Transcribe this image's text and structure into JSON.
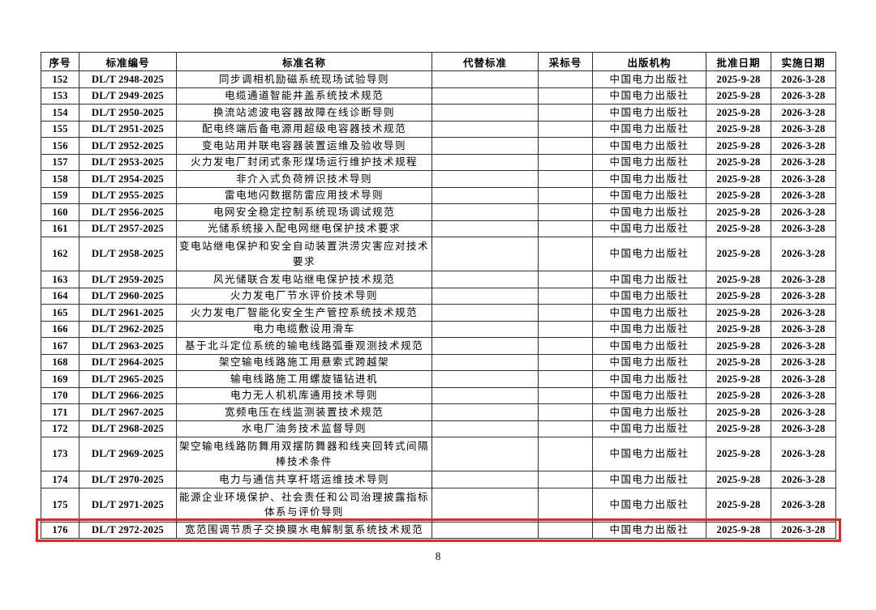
{
  "page": {
    "number": "8"
  },
  "table": {
    "border_color": "#2e2e2e",
    "highlight_color": "#ee2224",
    "columns": [
      {
        "key": "index",
        "label": "序号"
      },
      {
        "key": "code",
        "label": "标准编号"
      },
      {
        "key": "name",
        "label": "标准名称"
      },
      {
        "key": "replaces",
        "label": "代替标准"
      },
      {
        "key": "adopted",
        "label": "采标号"
      },
      {
        "key": "publisher",
        "label": "出版机构"
      },
      {
        "key": "approved",
        "label": "批准日期"
      },
      {
        "key": "implemented",
        "label": "实施日期"
      }
    ],
    "rows": [
      {
        "index": "152",
        "code": "DL/T 2948-2025",
        "name": "同步调相机励磁系统现场试验导则",
        "replaces": "",
        "adopted": "",
        "publisher": "中国电力出版社",
        "approved": "2025-9-28",
        "implemented": "2026-3-28",
        "highlighted": false
      },
      {
        "index": "153",
        "code": "DL/T 2949-2025",
        "name": "电缆通道智能井盖系统技术规范",
        "replaces": "",
        "adopted": "",
        "publisher": "中国电力出版社",
        "approved": "2025-9-28",
        "implemented": "2026-3-28",
        "highlighted": false
      },
      {
        "index": "154",
        "code": "DL/T 2950-2025",
        "name": "换流站滤波电容器故障在线诊断导则",
        "replaces": "",
        "adopted": "",
        "publisher": "中国电力出版社",
        "approved": "2025-9-28",
        "implemented": "2026-3-28",
        "highlighted": false
      },
      {
        "index": "155",
        "code": "DL/T 2951-2025",
        "name": "配电终端后备电源用超级电容器技术规范",
        "replaces": "",
        "adopted": "",
        "publisher": "中国电力出版社",
        "approved": "2025-9-28",
        "implemented": "2026-3-28",
        "highlighted": false
      },
      {
        "index": "156",
        "code": "DL/T 2952-2025",
        "name": "变电站用并联电容器装置运维及验收导则",
        "replaces": "",
        "adopted": "",
        "publisher": "中国电力出版社",
        "approved": "2025-9-28",
        "implemented": "2026-3-28",
        "highlighted": false
      },
      {
        "index": "157",
        "code": "DL/T 2953-2025",
        "name": "火力发电厂封闭式条形煤场运行维护技术规程",
        "replaces": "",
        "adopted": "",
        "publisher": "中国电力出版社",
        "approved": "2025-9-28",
        "implemented": "2026-3-28",
        "highlighted": false
      },
      {
        "index": "158",
        "code": "DL/T 2954-2025",
        "name": "非介入式负荷辨识技术导则",
        "replaces": "",
        "adopted": "",
        "publisher": "中国电力出版社",
        "approved": "2025-9-28",
        "implemented": "2026-3-28",
        "highlighted": false
      },
      {
        "index": "159",
        "code": "DL/T 2955-2025",
        "name": "雷电地闪数据防雷应用技术导则",
        "replaces": "",
        "adopted": "",
        "publisher": "中国电力出版社",
        "approved": "2025-9-28",
        "implemented": "2026-3-28",
        "highlighted": false
      },
      {
        "index": "160",
        "code": "DL/T 2956-2025",
        "name": "电网安全稳定控制系统现场调试规范",
        "replaces": "",
        "adopted": "",
        "publisher": "中国电力出版社",
        "approved": "2025-9-28",
        "implemented": "2026-3-28",
        "highlighted": false
      },
      {
        "index": "161",
        "code": "DL/T 2957-2025",
        "name": "光储系统接入配电网继电保护技术要求",
        "replaces": "",
        "adopted": "",
        "publisher": "中国电力出版社",
        "approved": "2025-9-28",
        "implemented": "2026-3-28",
        "highlighted": false
      },
      {
        "index": "162",
        "code": "DL/T 2958-2025",
        "name": "变电站继电保护和安全自动装置洪涝灾害应对技术\n要求",
        "replaces": "",
        "adopted": "",
        "publisher": "中国电力出版社",
        "approved": "2025-9-28",
        "implemented": "2026-3-28",
        "highlighted": false,
        "double": true
      },
      {
        "index": "163",
        "code": "DL/T 2959-2025",
        "name": "风光储联合发电站继电保护技术规范",
        "replaces": "",
        "adopted": "",
        "publisher": "中国电力出版社",
        "approved": "2025-9-28",
        "implemented": "2026-3-28",
        "highlighted": false
      },
      {
        "index": "164",
        "code": "DL/T 2960-2025",
        "name": "火力发电厂节水评价技术导则",
        "replaces": "",
        "adopted": "",
        "publisher": "中国电力出版社",
        "approved": "2025-9-28",
        "implemented": "2026-3-28",
        "highlighted": false
      },
      {
        "index": "165",
        "code": "DL/T 2961-2025",
        "name": "火力发电厂智能化安全生产管控系统技术规范",
        "replaces": "",
        "adopted": "",
        "publisher": "中国电力出版社",
        "approved": "2025-9-28",
        "implemented": "2026-3-28",
        "highlighted": false
      },
      {
        "index": "166",
        "code": "DL/T 2962-2025",
        "name": "电力电缆敷设用滑车",
        "replaces": "",
        "adopted": "",
        "publisher": "中国电力出版社",
        "approved": "2025-9-28",
        "implemented": "2026-3-28",
        "highlighted": false
      },
      {
        "index": "167",
        "code": "DL/T 2963-2025",
        "name": "基于北斗定位系统的输电线路弧垂观测技术规范",
        "replaces": "",
        "adopted": "",
        "publisher": "中国电力出版社",
        "approved": "2025-9-28",
        "implemented": "2026-3-28",
        "highlighted": false
      },
      {
        "index": "168",
        "code": "DL/T 2964-2025",
        "name": "架空输电线路施工用悬索式跨越架",
        "replaces": "",
        "adopted": "",
        "publisher": "中国电力出版社",
        "approved": "2025-9-28",
        "implemented": "2026-3-28",
        "highlighted": false
      },
      {
        "index": "169",
        "code": "DL/T 2965-2025",
        "name": "输电线路施工用螺旋锚钻进机",
        "replaces": "",
        "adopted": "",
        "publisher": "中国电力出版社",
        "approved": "2025-9-28",
        "implemented": "2026-3-28",
        "highlighted": false
      },
      {
        "index": "170",
        "code": "DL/T 2966-2025",
        "name": "电力无人机机库通用技术导则",
        "replaces": "",
        "adopted": "",
        "publisher": "中国电力出版社",
        "approved": "2025-9-28",
        "implemented": "2026-3-28",
        "highlighted": false
      },
      {
        "index": "171",
        "code": "DL/T 2967-2025",
        "name": "宽频电压在线监测装置技术规范",
        "replaces": "",
        "adopted": "",
        "publisher": "中国电力出版社",
        "approved": "2025-9-28",
        "implemented": "2026-3-28",
        "highlighted": false
      },
      {
        "index": "172",
        "code": "DL/T 2968-2025",
        "name": "水电厂油务技术监督导则",
        "replaces": "",
        "adopted": "",
        "publisher": "中国电力出版社",
        "approved": "2025-9-28",
        "implemented": "2026-3-28",
        "highlighted": false
      },
      {
        "index": "173",
        "code": "DL/T 2969-2025",
        "name": "架空输电线路防舞用双摆防舞器和线夹回转式间隔\n棒技术条件",
        "replaces": "",
        "adopted": "",
        "publisher": "中国电力出版社",
        "approved": "2025-9-28",
        "implemented": "2026-3-28",
        "highlighted": false,
        "double": true
      },
      {
        "index": "174",
        "code": "DL/T 2970-2025",
        "name": "电力与通信共享杆塔运维技术导则",
        "replaces": "",
        "adopted": "",
        "publisher": "中国电力出版社",
        "approved": "2025-9-28",
        "implemented": "2026-3-28",
        "highlighted": false
      },
      {
        "index": "175",
        "code": "DL/T 2971-2025",
        "name": "能源企业环境保护、社会责任和公司治理披露指标\n体系与评价导则",
        "replaces": "",
        "adopted": "",
        "publisher": "中国电力出版社",
        "approved": "2025-9-28",
        "implemented": "2026-3-28",
        "highlighted": false,
        "double": true
      },
      {
        "index": "176",
        "code": "DL/T 2972-2025",
        "name": "宽范围调节质子交换膜水电解制氢系统技术规范",
        "replaces": "",
        "adopted": "",
        "publisher": "中国电力出版社",
        "approved": "2025-9-28",
        "implemented": "2026-3-28",
        "highlighted": true
      }
    ]
  }
}
